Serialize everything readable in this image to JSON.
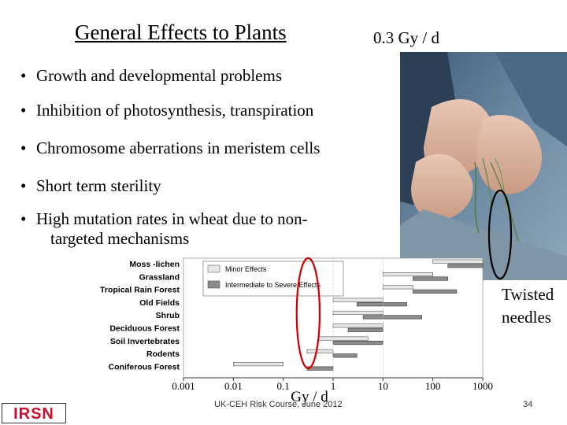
{
  "slide": {
    "title": "General Effects to Plants",
    "dose_label": "0.3 Gy / d",
    "bullets": [
      "Growth and developmental problems",
      "Inhibition of photosynthesis, transpiration",
      "Chromosome aberrations in meristem cells",
      "Short term sterility"
    ],
    "bullet_last_line1": "High mutation rates in wheat due to non-",
    "bullet_last_line2": "targeted mechanisms",
    "photo_caption_line1": "Twisted",
    "photo_caption_line2": "needles",
    "footer": "UK-CEH Risk Course, June 2012",
    "page_number": "34",
    "logo_text": "IRSN"
  },
  "colors": {
    "minor": "#e6e6e6",
    "severe": "#8c8c8c",
    "highlight": "#cc0000",
    "logo_red": "#c8102e"
  },
  "chart_data": {
    "type": "bar",
    "orientation": "horizontal",
    "x_scale": "log",
    "xlim": [
      0.001,
      1000
    ],
    "xlabel": "Gy / d",
    "x_ticks": [
      "0.001",
      "0.01",
      "0.1",
      "1",
      "10",
      "100",
      "1000"
    ],
    "legend": [
      "Minor Effects",
      "Intermediate to Severe Effects"
    ],
    "legend_position": "top-left",
    "categories": [
      "Moss -lichen",
      "Grassland",
      "Tropical Rain Forest",
      "Old Fields",
      "Shrub",
      "Deciduous Forest",
      "Soil Invertebrates",
      "Rodents",
      "Coniferous Forest"
    ],
    "series": [
      {
        "name": "Minor Effects",
        "ranges": [
          [
            100,
            1000
          ],
          [
            10,
            100
          ],
          [
            10,
            40
          ],
          [
            1,
            10
          ],
          [
            1,
            10
          ],
          [
            1,
            10
          ],
          [
            0.5,
            5
          ],
          [
            0.3,
            1
          ],
          [
            0.01,
            0.1
          ]
        ]
      },
      {
        "name": "Intermediate to Severe Effects",
        "ranges": [
          [
            200,
            1000
          ],
          [
            40,
            200
          ],
          [
            40,
            300
          ],
          [
            3,
            30
          ],
          [
            4,
            60
          ],
          [
            2,
            10
          ],
          [
            1,
            10
          ],
          [
            1,
            3
          ],
          [
            0.3,
            1
          ]
        ]
      }
    ],
    "highlight_band": [
      0.2,
      0.5
    ]
  }
}
